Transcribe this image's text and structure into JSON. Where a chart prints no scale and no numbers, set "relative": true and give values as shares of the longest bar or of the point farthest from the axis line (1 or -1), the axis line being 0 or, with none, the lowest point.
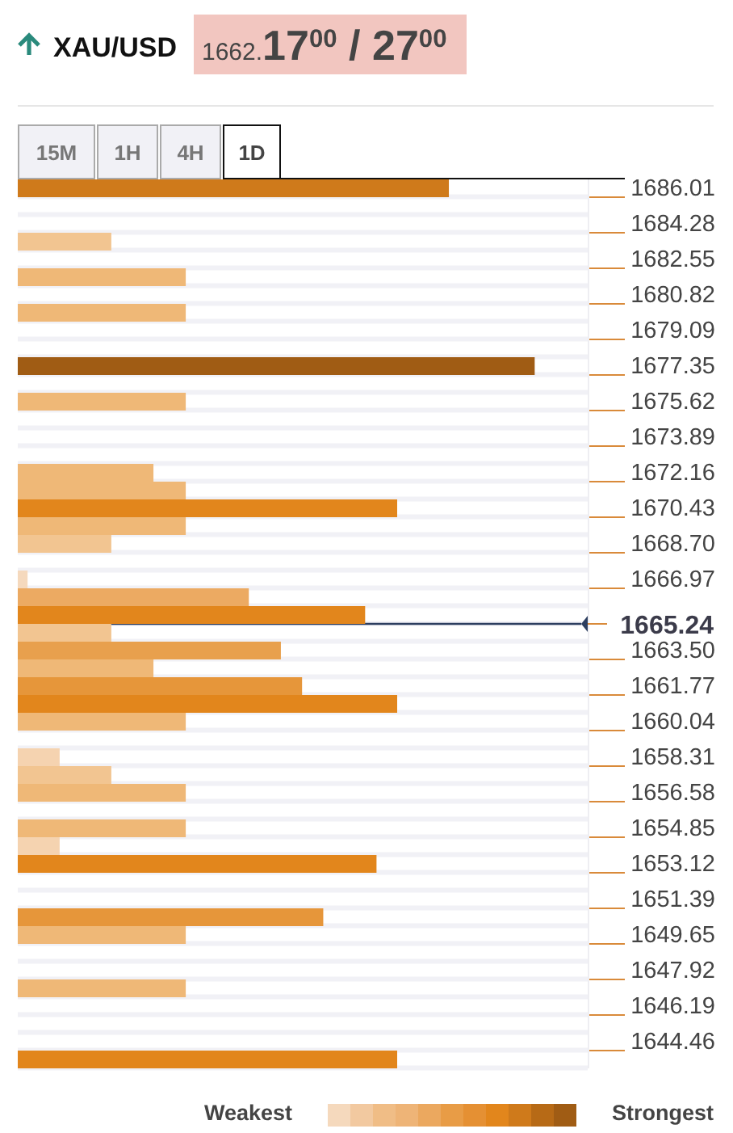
{
  "chart_data": {
    "type": "bar",
    "orientation": "horizontal",
    "relative": true,
    "title": "XAU/USD",
    "subtitle": "1662.17$^{00}$ / 27$^{00}$",
    "categories": [
      "1686.01",
      null,
      "1684.28",
      null,
      "1682.55",
      null,
      "1680.82",
      null,
      "1679.09",
      null,
      "1677.35",
      null,
      "1675.62",
      null,
      "1673.89",
      null,
      "1672.16",
      null,
      "1670.43",
      null,
      "1668.70",
      null,
      "1666.97",
      null,
      "1665.24",
      null,
      "1663.50",
      null,
      "1661.77",
      null,
      "1660.04",
      null,
      "1658.31",
      null,
      "1656.58",
      null,
      "1654.85",
      null,
      "1653.12",
      null,
      "1651.39",
      null,
      "1649.65",
      null,
      "1647.92",
      null,
      "1646.19",
      null,
      "1644.46",
      null
    ],
    "values": [
      0.834,
      null,
      null,
      0.181,
      null,
      0.325,
      null,
      0.325,
      null,
      null,
      1.0,
      null,
      0.325,
      null,
      null,
      null,
      0.2625,
      0.325,
      0.734,
      0.325,
      0.181,
      null,
      0.019,
      0.447,
      0.672,
      0.181,
      0.509,
      0.2625,
      0.55,
      0.734,
      0.325,
      null,
      0.081,
      0.181,
      0.325,
      null,
      0.325,
      0.081,
      0.694,
      null,
      null,
      0.591,
      0.325,
      null,
      null,
      0.325,
      null,
      null,
      null,
      0.734
    ],
    "colors": [
      "#cf7a1b",
      null,
      null,
      "#f2c591",
      null,
      "#efb877",
      null,
      "#efb877",
      null,
      null,
      "#a05c14",
      null,
      "#efb877",
      null,
      null,
      null,
      "#efb877",
      "#efb877",
      "#e2861c",
      "#efb877",
      "#f2c591",
      null,
      "#f5d9bd",
      "#ecaa62",
      "#e2861c",
      "#f2c591",
      "#e8a04d",
      "#efb877",
      "#e6963a",
      "#e2861c",
      "#efb877",
      null,
      "#f5d3b0",
      "#f2c591",
      "#efb877",
      null,
      "#efb877",
      "#f5d3b0",
      "#e2861c",
      null,
      null,
      "#e6963a",
      "#efb877",
      null,
      null,
      "#efb877",
      null,
      null,
      null,
      "#e2861c"
    ],
    "grid": true,
    "ref_lines": [
      {
        "axis": "y",
        "value": "1665.24",
        "color": "#2c3e5f"
      }
    ],
    "annotations": [
      "15M",
      "1H",
      "4H",
      "1D",
      "Weakest",
      "Strongest"
    ]
  }
}
